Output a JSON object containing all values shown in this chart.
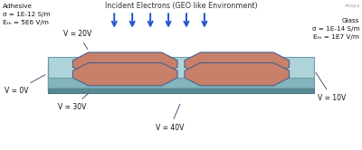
{
  "title": "Incident Electrons (GEO like Environment)",
  "arrow_color": "#2255cc",
  "adhesive_label": "Adhesive\nσ = 1E-12 S/m\nEₜₕ = 5E6 V/m",
  "glass_label": "Glass\nσ = 1E-14 S/m\nEₜₕ = 1E7 V/m",
  "ansys_label": "Ansys",
  "bg_color": "#ffffff",
  "cell_color": "#c8806a",
  "cell_edge": "#4a6090",
  "glass_top_fill": "#aed4da",
  "glass_left_fill": "#9cc8cf",
  "glass_right_fill": "#85b5bc",
  "glass_edge": "#6aa0a8",
  "base_top_fill": "#7aaab2",
  "base_front_l": "#6898a0",
  "base_front_r": "#5a8890",
  "base_edge": "#4a7880"
}
